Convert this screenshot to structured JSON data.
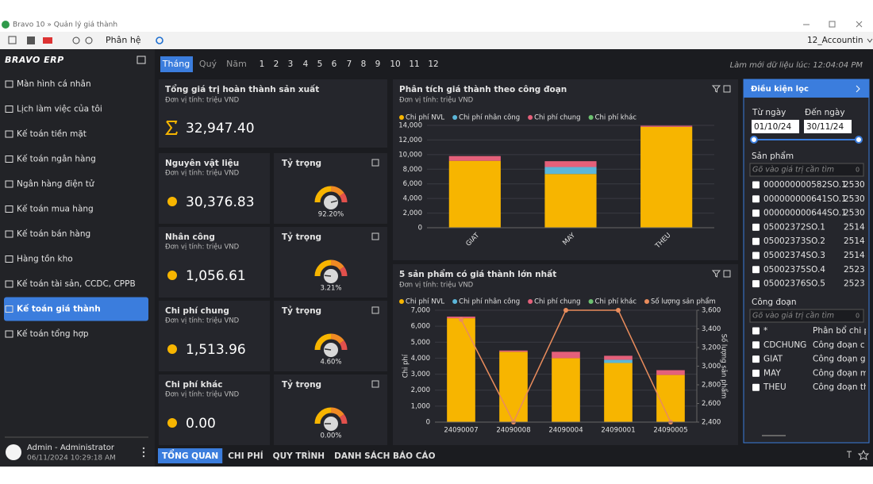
{
  "window": {
    "title": "Bravo 10 » Quản lý giá thành"
  },
  "toolbar": {
    "module": "Phân hệ",
    "account": "12_Accountin"
  },
  "sidebar": {
    "logo": "BRAVO ERP",
    "items": [
      "Màn hình cá nhân",
      "Lịch làm việc của tôi",
      "Kế toán tiền mặt",
      "Kế toán ngân hàng",
      "Ngân hàng điện tử",
      "Kế toán mua hàng",
      "Kế toán bán hàng",
      "Hàng tồn kho",
      "Kế toán tài sản, CCDC, CPPB",
      "Kế toán giá thành",
      "Kế toán tổng hợp"
    ],
    "active": 9,
    "user": {
      "name": "Admin - Administrator",
      "time": "06/11/2024 10:29:18 AM"
    }
  },
  "period": {
    "tabs": [
      "Tháng",
      "Quý",
      "Năm"
    ],
    "active": 0,
    "months": [
      "1",
      "2",
      "3",
      "4",
      "5",
      "6",
      "7",
      "8",
      "9",
      "10",
      "11",
      "12"
    ],
    "refreshed": "Làm mới dữ liệu lúc: 12:04:04 PM"
  },
  "total": {
    "title": "Tổng giá trị hoàn thành sản xuất",
    "unit": "Đơn vị tính: triệu VND",
    "value": "32,947.40"
  },
  "gauge": {
    "lim": [
      0,
      100
    ]
  },
  "cost_cards": [
    {
      "title": "Nguyên vật liệu",
      "unit": "Đơn vị tính: triệu VND",
      "value": "30,376.83",
      "ratio_title": "Tỷ trọng",
      "ratio": 92.2,
      "ratio_label": "92.20%"
    },
    {
      "title": "Nhân công",
      "unit": "Đơn vị tính: triệu VND",
      "value": "1,056.61",
      "ratio_title": "Tỷ trọng",
      "ratio": 3.21,
      "ratio_label": "3.21%"
    },
    {
      "title": "Chi phí chung",
      "unit": "Đơn vị tính: triệu VND",
      "value": "1,513.96",
      "ratio_title": "Tỷ trọng",
      "ratio": 4.6,
      "ratio_label": "4.60%"
    },
    {
      "title": "Chi phí khác",
      "unit": "Đơn vị tính: triệu VND",
      "value": "0.00",
      "ratio_title": "Tỷ trọng",
      "ratio": 0,
      "ratio_label": "0.00%"
    }
  ],
  "chart_data": [
    {
      "type": "bar",
      "stacked": true,
      "grid": true,
      "title": "Phân tích giá thành theo công đoạn",
      "subtitle": "Đơn vị tính: triệu VND",
      "categories": [
        "GIAT",
        "MAY",
        "THEU"
      ],
      "series": [
        {
          "name": "Chi phí NVL",
          "color": "#f7b500",
          "values": [
            9150,
            7350,
            13800
          ]
        },
        {
          "name": "Chi phí nhân công",
          "color": "#5bb6d9",
          "values": [
            0,
            950,
            0
          ]
        },
        {
          "name": "Chi phí chung",
          "color": "#e4607a",
          "values": [
            650,
            800,
            150
          ]
        },
        {
          "name": "Chi phí khác",
          "color": "#6cc070",
          "values": [
            0,
            0,
            0
          ]
        }
      ],
      "ylim": [
        0,
        14000
      ],
      "yticks": [
        0,
        {
          "value": 2000,
          "label": "2,000"
        },
        {
          "value": 4000,
          "label": "4,000"
        },
        {
          "value": 6000,
          "label": "6,000"
        },
        {
          "value": 8000,
          "label": "8,000"
        },
        {
          "value": 10000,
          "label": "10,000"
        },
        {
          "value": 12000,
          "label": "12,000"
        },
        {
          "value": 14000,
          "label": "14,000"
        }
      ]
    },
    {
      "type": "bar",
      "stacked": true,
      "grid": true,
      "title": "5 sản phẩm có giá thành lớn nhất",
      "subtitle": "Đơn vị tính: triệu VND",
      "categories": [
        "24090007",
        "24090008",
        "24090004",
        "24090001",
        "24090005"
      ],
      "ylabel": "Chi phí",
      "y2label": "Số lượng sản phẩm",
      "series": [
        {
          "name": "Chi phí NVL",
          "color": "#f7b500",
          "values": [
            6500,
            4400,
            4000,
            3700,
            2950
          ]
        },
        {
          "name": "Chi phí nhân công",
          "color": "#5bb6d9",
          "values": [
            0,
            0,
            0,
            200,
            0
          ]
        },
        {
          "name": "Chi phí chung",
          "color": "#e4607a",
          "values": [
            100,
            80,
            400,
            250,
            300
          ]
        },
        {
          "name": "Chi phí khác",
          "color": "#6cc070",
          "values": [
            0,
            0,
            0,
            0,
            0
          ]
        },
        {
          "name": "Số lượng sản phẩm",
          "color": "#e98c5c",
          "type": "line",
          "axis": "y2",
          "values": [
            3500,
            2400,
            3600,
            3600,
            2400
          ]
        }
      ],
      "ylim": [
        0,
        7000
      ],
      "yticks": [
        0,
        {
          "value": 1000,
          "label": "1,000"
        },
        {
          "value": 2000,
          "label": "2,000"
        },
        {
          "value": 3000,
          "label": "3,000"
        },
        {
          "value": 4000,
          "label": "4,000"
        },
        {
          "value": 5000,
          "label": "5,000"
        },
        {
          "value": 6000,
          "label": "6,000"
        },
        {
          "value": 7000,
          "label": "7,000"
        }
      ],
      "y2lim": [
        2400,
        3600
      ],
      "y2ticks": [
        {
          "value": 2400,
          "label": "2,400"
        },
        {
          "value": 2600,
          "label": "2,600"
        },
        {
          "value": 2800,
          "label": "2,800"
        },
        {
          "value": 3000,
          "label": "3,000"
        },
        {
          "value": 3200,
          "label": "3,200"
        },
        {
          "value": 3400,
          "label": "3,400"
        },
        {
          "value": 3600,
          "label": "3,600"
        }
      ]
    }
  ],
  "filter": {
    "title": "Điều kiện lọc",
    "from_label": "Từ ngày",
    "from": "01/10/24",
    "to_label": "Đến ngày",
    "to": "30/11/24",
    "products_label": "Sản phẩm",
    "products_search": "Gõ vào giá trị cần tìm",
    "products_count": "0",
    "products": [
      [
        "000000000582SO.1",
        "2530"
      ],
      [
        "000000000641SO.1",
        "2530"
      ],
      [
        "000000000644SO.1",
        "2530"
      ],
      [
        "05002372SO.1",
        "2514"
      ],
      [
        "05002373SO.2",
        "2514"
      ],
      [
        "05002374SO.3",
        "2514"
      ],
      [
        "05002375SO.4",
        "2523"
      ],
      [
        "05002376SO.5",
        "2523"
      ]
    ],
    "stages_label": "Công đoạn",
    "stages_search": "Gõ vào giá trị cần tìm",
    "stages_count": "0",
    "stages": [
      [
        "*",
        "Phân bổ chi p"
      ],
      [
        "CDCHUNG",
        "Công đoạn c"
      ],
      [
        "GIAT",
        "Công đoạn g"
      ],
      [
        "MAY",
        "Công đoạn m"
      ],
      [
        "THEU",
        "Công đoạn th"
      ]
    ]
  },
  "bottom_tabs": [
    "TỔNG QUAN",
    "CHI PHÍ",
    "QUY TRÌNH",
    "DANH SÁCH BÁO CÁO"
  ],
  "bottom_active": 0
}
